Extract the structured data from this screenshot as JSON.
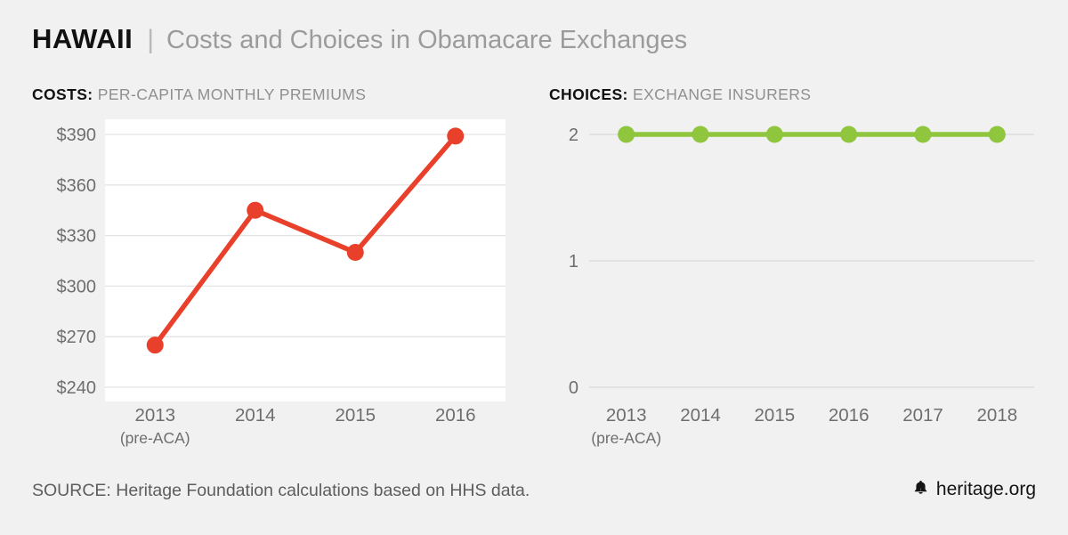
{
  "header": {
    "state": "HAWAII",
    "separator": "|",
    "title": "Costs and Choices in Obamacare Exchanges"
  },
  "charts": {
    "costs": {
      "label_bold": "COSTS:",
      "label_rest": "PER-CAPITA MONTHLY PREMIUMS"
    },
    "choices": {
      "label_bold": "CHOICES:",
      "label_rest": "EXCHANGE INSURERS"
    }
  },
  "chart_data": [
    {
      "id": "costs",
      "type": "line",
      "title": "COSTS: PER-CAPITA MONTHLY PREMIUMS",
      "categories": [
        "2013",
        "2014",
        "2015",
        "2016"
      ],
      "sub_labels": {
        "2013": "(pre-ACA)"
      },
      "values": [
        265,
        345,
        320,
        389
      ],
      "ylim": [
        240,
        390
      ],
      "yticks": [
        {
          "value": 240,
          "label": "$240"
        },
        {
          "value": 270,
          "label": "$270"
        },
        {
          "value": 300,
          "label": "$300"
        },
        {
          "value": 330,
          "label": "$330"
        },
        {
          "value": 360,
          "label": "$360"
        },
        {
          "value": 390,
          "label": "$390"
        }
      ],
      "line_color": "#e8402b",
      "plot_bg": "#ffffff",
      "grid_color": "#e4e4e4",
      "grid": true,
      "legend": "none"
    },
    {
      "id": "choices",
      "type": "line",
      "title": "CHOICES: EXCHANGE INSURERS",
      "categories": [
        "2013",
        "2014",
        "2015",
        "2016",
        "2017",
        "2018"
      ],
      "sub_labels": {
        "2013": "(pre-ACA)"
      },
      "values": [
        2,
        2,
        2,
        2,
        2,
        2
      ],
      "ylim": [
        0,
        2
      ],
      "yticks": [
        {
          "value": 0,
          "label": "0"
        },
        {
          "value": 1,
          "label": "1"
        },
        {
          "value": 2,
          "label": "2"
        }
      ],
      "line_color": "#8fc63e",
      "plot_bg": null,
      "grid_color": "#dadadb",
      "grid": true,
      "legend": "none"
    }
  ],
  "footer": {
    "source": "SOURCE: Heritage Foundation calculations based on HHS data.",
    "brand": "heritage.org"
  },
  "colors": {
    "costs_line": "#e8402b",
    "choices_line": "#8fc63e",
    "axis_text": "#6e6e6f",
    "background": "#f1f1f2"
  }
}
